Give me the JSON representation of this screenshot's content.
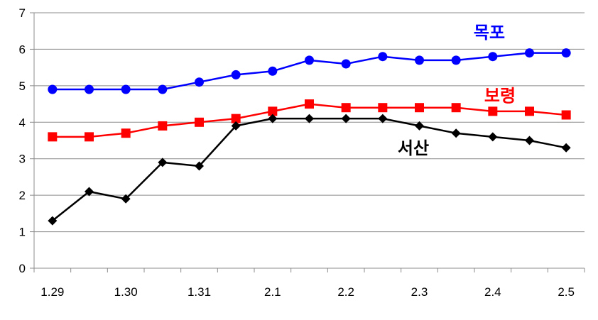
{
  "chart_data": {
    "type": "line",
    "title": "",
    "xlabel": "",
    "ylabel": "",
    "ylim": [
      0,
      7
    ],
    "yticks": [
      0,
      1,
      2,
      3,
      4,
      5,
      6,
      7
    ],
    "grid": "horizontal",
    "legend": "inline labels",
    "categories": [
      "1.29",
      "",
      "1.30",
      "",
      "1.31",
      "",
      "2.1",
      "",
      "2.2",
      "",
      "2.3",
      "",
      "2.4",
      "",
      "2.5"
    ],
    "series": [
      {
        "name": "목포",
        "color": "#0000ff",
        "marker": "circle",
        "values": [
          4.9,
          4.9,
          4.9,
          4.9,
          5.1,
          5.3,
          5.4,
          5.7,
          5.6,
          5.8,
          5.7,
          5.7,
          5.8,
          5.9,
          5.9
        ]
      },
      {
        "name": "보령",
        "color": "#ff0000",
        "marker": "square",
        "values": [
          3.6,
          3.6,
          3.7,
          3.9,
          4.0,
          4.1,
          4.3,
          4.5,
          4.4,
          4.4,
          4.4,
          4.4,
          4.3,
          4.3,
          4.2
        ]
      },
      {
        "name": "서산",
        "color": "#000000",
        "marker": "diamond",
        "values": [
          1.3,
          2.1,
          1.9,
          2.9,
          2.8,
          3.9,
          4.1,
          4.1,
          4.1,
          4.1,
          3.9,
          3.7,
          3.6,
          3.5,
          3.3
        ]
      }
    ]
  }
}
